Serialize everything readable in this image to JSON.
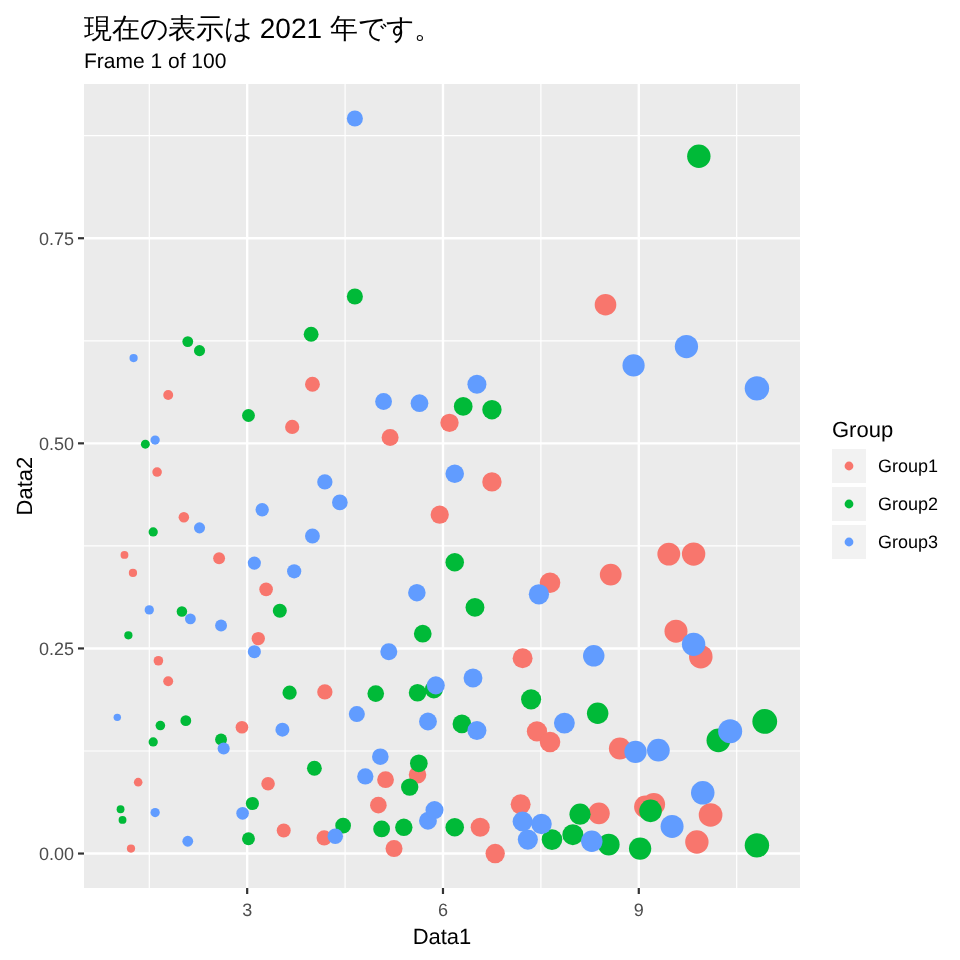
{
  "chart_data": {
    "type": "bubble",
    "title": "現在の表示は 2021 年です。",
    "subtitle": "Frame 1 of 100",
    "xlabel": "Data1",
    "ylabel": "Data2",
    "legend_title": "Group",
    "xlim": [
      0.5,
      11.47
    ],
    "ylim": [
      -0.042,
      0.938
    ],
    "xticks": [
      3,
      6,
      9
    ],
    "yticks": [
      {
        "value": 0,
        "label": "0.00"
      },
      {
        "value": 0.25,
        "label": "0.25"
      },
      {
        "value": 0.5,
        "label": "0.50"
      },
      {
        "value": 0.75,
        "label": "0.75"
      }
    ],
    "grid": true,
    "legend": "right",
    "marker": "circle",
    "series": [
      {
        "name": "Group1",
        "color": "#f8766d",
        "x": [
          1.12,
          1.22,
          1.25,
          1.33,
          1.62,
          1.64,
          1.79,
          1.79,
          2.03,
          2.57,
          2.92,
          3.17,
          3.29,
          3.32,
          3.56,
          3.69,
          4.0,
          4.18,
          4.19,
          5.01,
          5.12,
          5.19,
          5.25,
          5.61,
          5.95,
          6.1,
          6.57,
          6.75,
          6.8,
          7.19,
          7.22,
          7.44,
          7.64,
          7.64,
          8.39,
          8.49,
          8.57,
          8.71,
          9.1,
          9.23,
          9.46,
          9.57,
          9.84,
          9.89,
          9.95,
          10.1
        ],
        "values": [
          0.364,
          0.006,
          0.342,
          0.087,
          0.465,
          0.235,
          0.559,
          0.21,
          0.41,
          0.36,
          0.154,
          0.262,
          0.322,
          0.085,
          0.028,
          0.52,
          0.572,
          0.019,
          0.197,
          0.059,
          0.09,
          0.507,
          0.006,
          0.096,
          0.413,
          0.525,
          0.032,
          0.453,
          0.0,
          0.06,
          0.238,
          0.149,
          0.33,
          0.136,
          0.049,
          0.669,
          0.34,
          0.128,
          0.057,
          0.06,
          0.365,
          0.271,
          0.365,
          0.014,
          0.24,
          0.047
        ],
        "sizes": [
          0.1,
          0.11,
          0.11,
          0.12,
          0.15,
          0.15,
          0.16,
          0.16,
          0.18,
          0.23,
          0.26,
          0.29,
          0.3,
          0.3,
          0.32,
          0.33,
          0.36,
          0.38,
          0.38,
          0.45,
          0.46,
          0.47,
          0.47,
          0.5,
          0.54,
          0.55,
          0.59,
          0.61,
          0.61,
          0.65,
          0.65,
          0.67,
          0.69,
          0.69,
          0.76,
          0.76,
          0.77,
          0.78,
          0.82,
          0.83,
          0.85,
          0.86,
          0.89,
          0.89,
          0.9,
          0.91
        ]
      },
      {
        "name": "Group2",
        "color": "#00ba38",
        "x": [
          1.06,
          1.09,
          1.18,
          1.44,
          1.56,
          1.56,
          1.67,
          2.0,
          2.06,
          2.09,
          2.27,
          2.6,
          3.02,
          3.02,
          3.08,
          3.5,
          3.65,
          3.98,
          4.03,
          4.47,
          4.65,
          4.97,
          5.06,
          5.4,
          5.49,
          5.61,
          5.63,
          5.69,
          5.86,
          6.18,
          6.18,
          6.29,
          6.31,
          6.49,
          6.75,
          7.35,
          7.67,
          7.99,
          8.1,
          8.37,
          8.54,
          9.02,
          9.18,
          9.92,
          10.22,
          10.81,
          10.93
        ],
        "values": [
          0.054,
          0.041,
          0.266,
          0.499,
          0.392,
          0.136,
          0.156,
          0.295,
          0.162,
          0.624,
          0.613,
          0.139,
          0.534,
          0.018,
          0.061,
          0.296,
          0.196,
          0.633,
          0.104,
          0.034,
          0.679,
          0.195,
          0.03,
          0.032,
          0.081,
          0.196,
          0.11,
          0.268,
          0.2,
          0.355,
          0.032,
          0.158,
          0.545,
          0.3,
          0.541,
          0.188,
          0.017,
          0.023,
          0.048,
          0.171,
          0.011,
          0.006,
          0.052,
          0.85,
          0.138,
          0.01,
          0.161
        ],
        "sizes": [
          0.1,
          0.1,
          0.11,
          0.13,
          0.14,
          0.14,
          0.15,
          0.18,
          0.19,
          0.19,
          0.2,
          0.23,
          0.27,
          0.27,
          0.28,
          0.32,
          0.33,
          0.36,
          0.36,
          0.4,
          0.42,
          0.45,
          0.46,
          0.49,
          0.49,
          0.5,
          0.51,
          0.51,
          0.53,
          0.56,
          0.56,
          0.57,
          0.57,
          0.58,
          0.61,
          0.66,
          0.69,
          0.72,
          0.73,
          0.75,
          0.77,
          0.81,
          0.83,
          0.89,
          0.92,
          0.97,
          1
        ]
      },
      {
        "name": "Group3",
        "color": "#619cff",
        "x": [
          1.01,
          1.26,
          1.5,
          1.59,
          1.59,
          2.09,
          2.13,
          2.27,
          2.6,
          2.64,
          2.93,
          3.11,
          3.11,
          3.23,
          3.54,
          3.72,
          4.0,
          4.19,
          4.35,
          4.42,
          4.65,
          4.68,
          4.81,
          5.04,
          5.09,
          5.17,
          5.6,
          5.64,
          5.77,
          5.77,
          5.87,
          5.89,
          6.18,
          6.46,
          6.52,
          6.52,
          7.22,
          7.3,
          7.47,
          7.51,
          7.86,
          8.28,
          8.31,
          8.92,
          8.95,
          9.3,
          9.51,
          9.73,
          9.84,
          9.98,
          10.4,
          10.81
        ],
        "values": [
          0.166,
          0.604,
          0.297,
          0.504,
          0.05,
          0.015,
          0.286,
          0.397,
          0.278,
          0.128,
          0.049,
          0.354,
          0.246,
          0.419,
          0.151,
          0.344,
          0.387,
          0.453,
          0.021,
          0.428,
          0.896,
          0.17,
          0.094,
          0.118,
          0.551,
          0.246,
          0.318,
          0.549,
          0.161,
          0.04,
          0.053,
          0.205,
          0.463,
          0.214,
          0.572,
          0.15,
          0.039,
          0.017,
          0.316,
          0.036,
          0.159,
          0.015,
          0.241,
          0.595,
          0.124,
          0.126,
          0.033,
          0.618,
          0.255,
          0.074,
          0.149,
          0.567
        ],
        "sizes": [
          0.09,
          0.11,
          0.14,
          0.14,
          0.14,
          0.19,
          0.19,
          0.2,
          0.23,
          0.24,
          0.26,
          0.28,
          0.28,
          0.29,
          0.32,
          0.33,
          0.36,
          0.38,
          0.39,
          0.4,
          0.42,
          0.42,
          0.43,
          0.45,
          0.46,
          0.47,
          0.5,
          0.51,
          0.52,
          0.52,
          0.53,
          0.53,
          0.56,
          0.58,
          0.59,
          0.59,
          0.65,
          0.66,
          0.67,
          0.68,
          0.71,
          0.75,
          0.75,
          0.8,
          0.81,
          0.84,
          0.86,
          0.88,
          0.89,
          0.9,
          0.94,
          0.97
        ]
      }
    ]
  }
}
